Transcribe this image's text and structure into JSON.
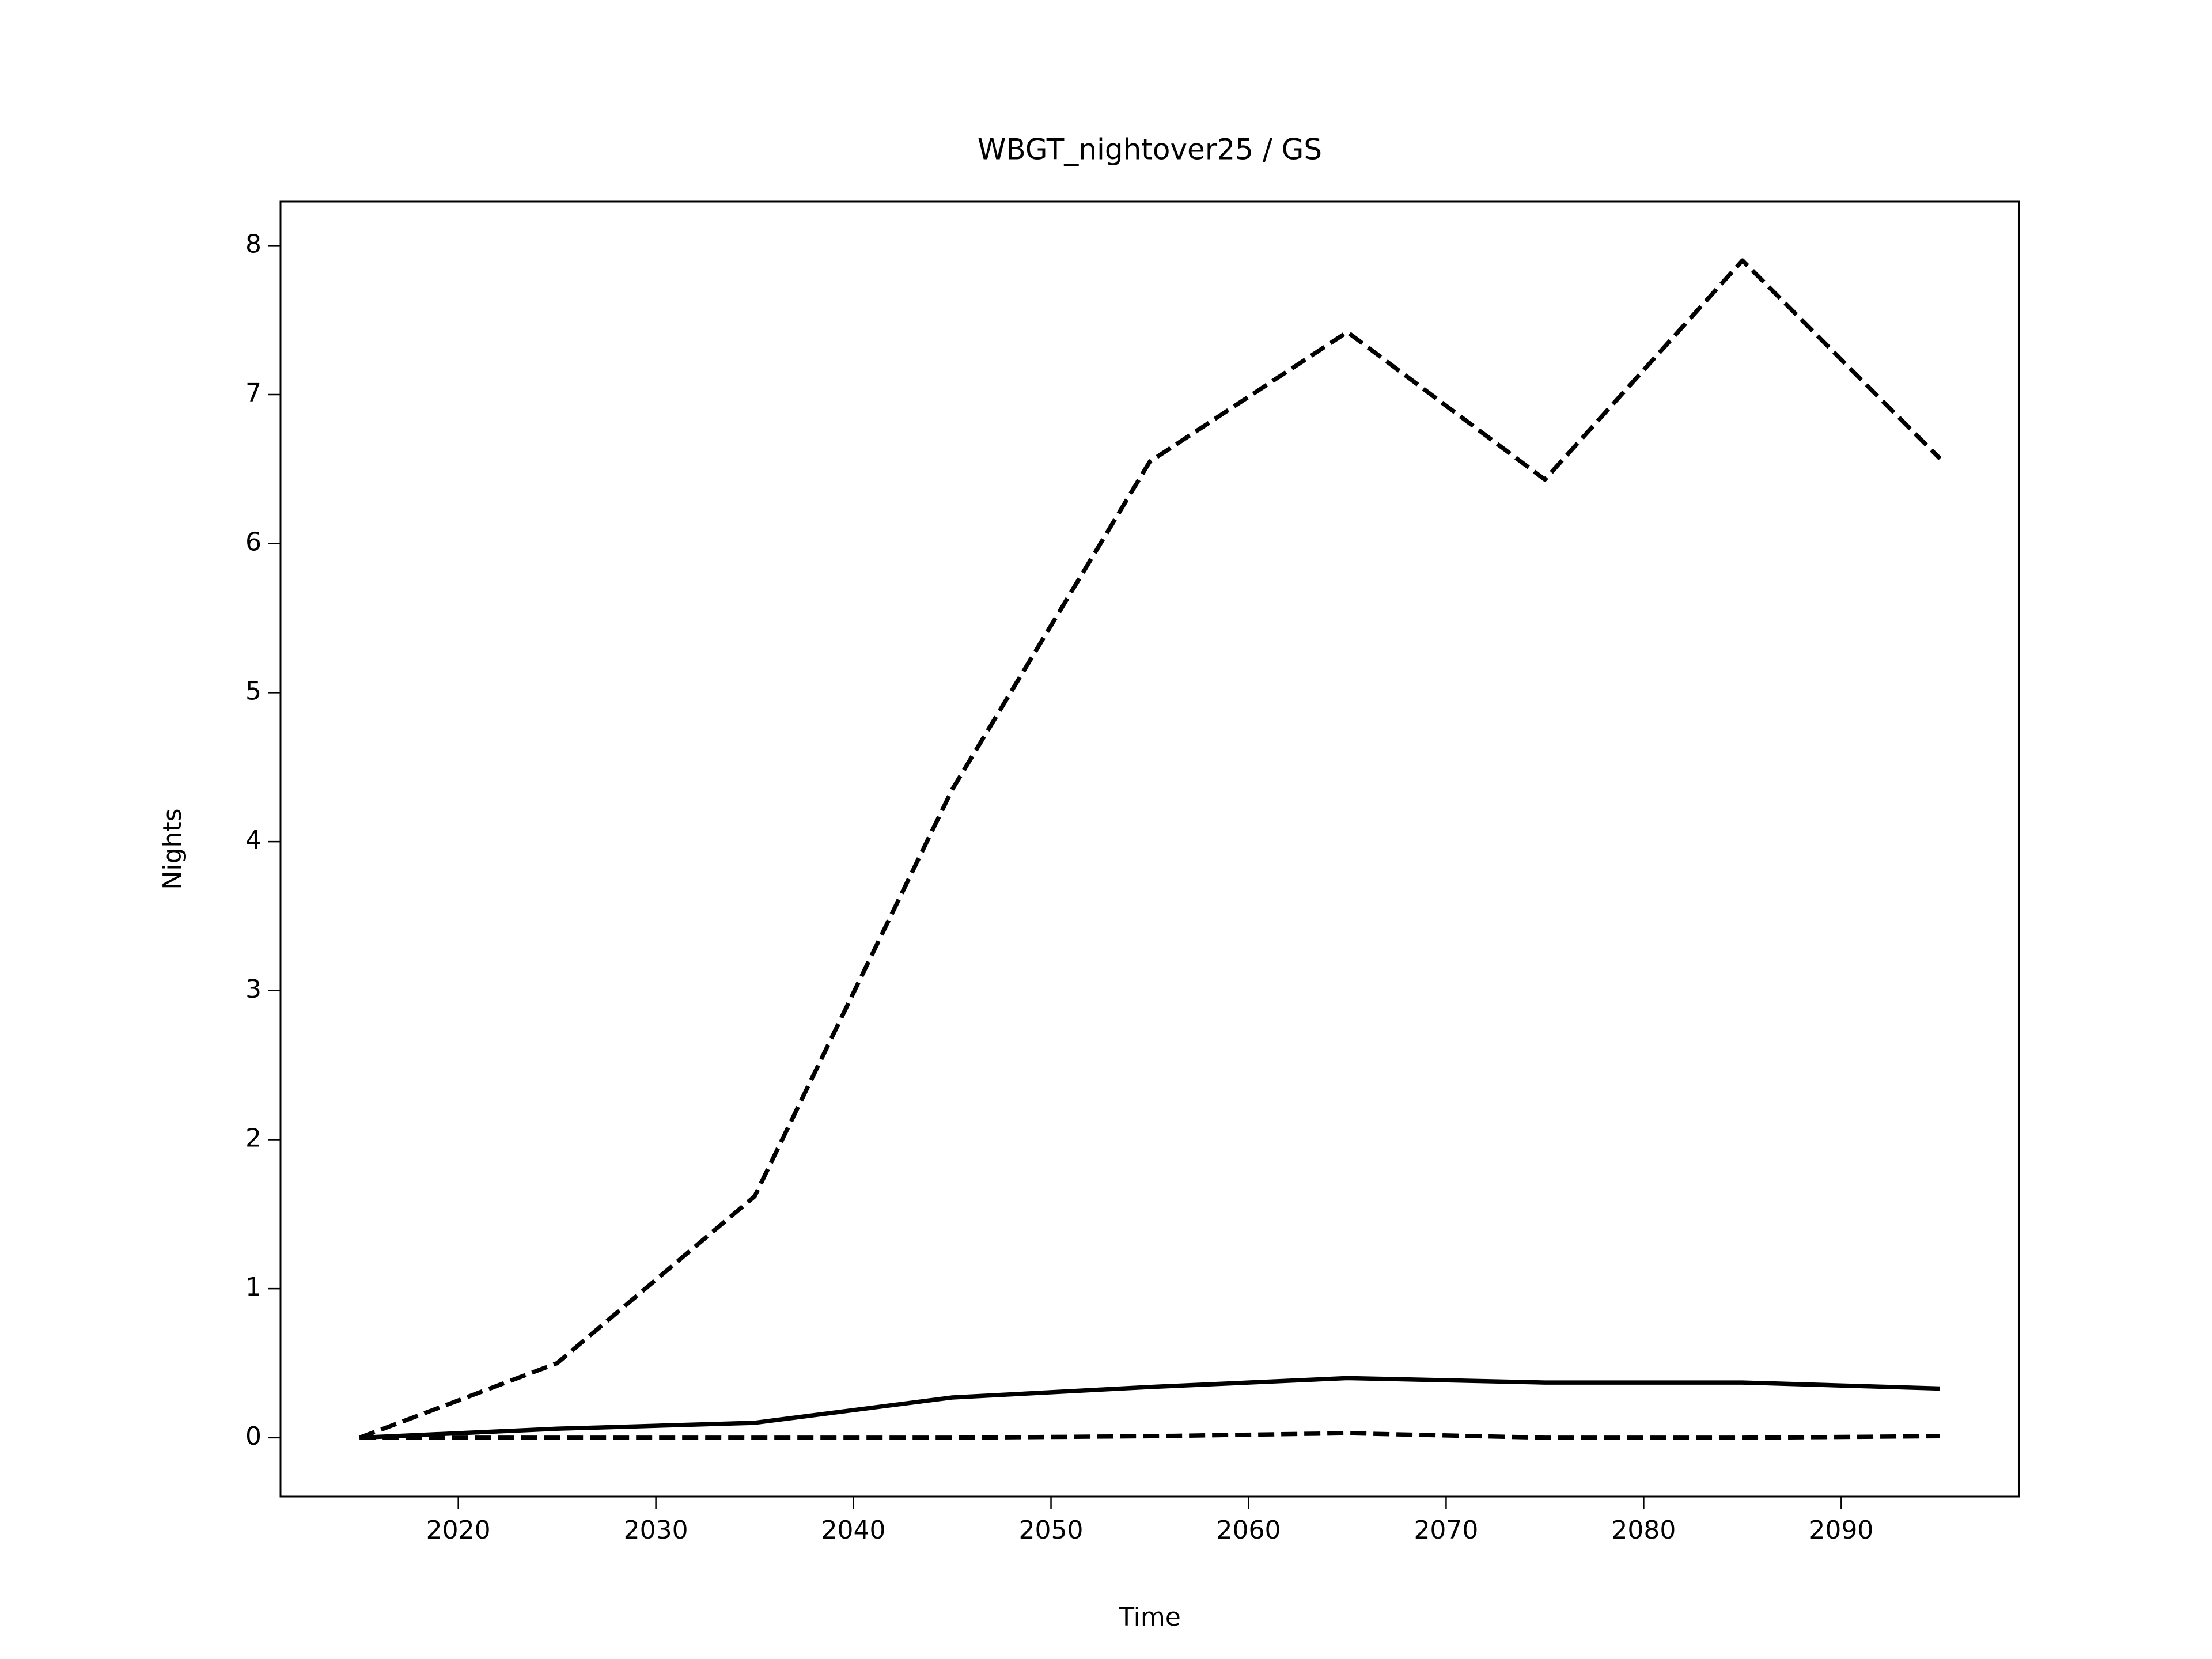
{
  "chart_data": {
    "type": "line",
    "title": "WBGT_nightover25 / GS",
    "x_label": "Time",
    "y_label": "Nights",
    "x": [
      2015,
      2025,
      2035,
      2045,
      2055,
      2065,
      2075,
      2085,
      2095
    ],
    "series": [
      {
        "color": "#000000",
        "style": "dashed",
        "values": [
          0,
          0.5,
          1.62,
          4.35,
          6.55,
          7.42,
          6.43,
          7.9,
          6.57
        ]
      },
      {
        "color": "#000000",
        "style": "solid",
        "values": [
          0,
          0.06,
          0.1,
          0.27,
          0.34,
          0.4,
          0.37,
          0.37,
          0.33
        ]
      },
      {
        "color": "#000000",
        "style": "dashed",
        "values": [
          0,
          0,
          0,
          0,
          0.01,
          0.03,
          0,
          0,
          0.01
        ]
      }
    ],
    "xlim": [
      2011,
      2099
    ],
    "ylim": [
      -0.395,
      8.295
    ],
    "xticks": [
      2020,
      2030,
      2040,
      2050,
      2060,
      2070,
      2080,
      2090
    ],
    "yticks": [
      0,
      1,
      2,
      3,
      4,
      5,
      6,
      7,
      8
    ],
    "grid": false
  }
}
